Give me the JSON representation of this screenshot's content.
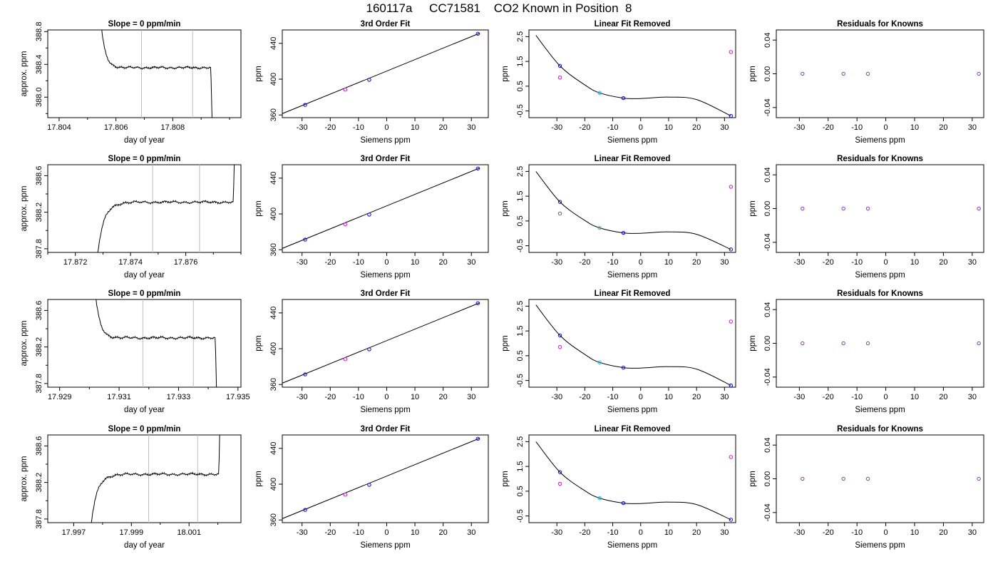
{
  "figure": {
    "title": "160117a     CC71581    CO2 Known in Position  8",
    "colors": {
      "line": "#000000",
      "guide": "#bebebe",
      "point_blue": "#0000ff",
      "point_magenta": "#ee00ee",
      "point_cyan": "#00bfff",
      "point_purple": "#8a2be2"
    }
  },
  "chart_data": [
    {
      "type": "line",
      "row": 1,
      "panel": "time",
      "title": "Slope =  0  ppm/min",
      "xlabel": "day of year",
      "ylabel": "approx. ppm",
      "xlim": [
        17.8036,
        17.8104
      ],
      "ylim": [
        387.75,
        388.82
      ],
      "xticks": [
        "17.804",
        "17.806",
        "17.808"
      ],
      "xtick_values": [
        17.804,
        17.806,
        17.808
      ],
      "yticks": [
        "388.0",
        "388.4",
        "388.8"
      ],
      "ytick_values": [
        388.0,
        388.4,
        388.8
      ],
      "guides": [
        17.8069,
        17.8087
      ],
      "shape": "down",
      "plateau": 388.36,
      "step_start": 17.8053,
      "step_end": 17.8094
    },
    {
      "type": "line",
      "row": 2,
      "panel": "time",
      "title": "Slope =  0  ppm/min",
      "xlabel": "day of year",
      "ylabel": "approx. ppm",
      "xlim": [
        17.871,
        17.878
      ],
      "ylim": [
        387.76,
        388.72
      ],
      "xticks": [
        "17.872",
        "17.874",
        "17.876"
      ],
      "xtick_values": [
        17.872,
        17.874,
        17.876
      ],
      "yticks": [
        "387.8",
        "388.2",
        "388.6"
      ],
      "ytick_values": [
        387.8,
        388.2,
        388.6
      ],
      "guides": [
        17.8748,
        17.8765
      ],
      "shape": "up",
      "plateau": 388.31,
      "step_start": 17.8727,
      "step_end": 17.8778
    },
    {
      "type": "line",
      "row": 3,
      "panel": "time",
      "title": "Slope =  0  ppm/min",
      "xlabel": "day of year",
      "ylabel": "approx. ppm",
      "xlim": [
        17.9286,
        17.9351
      ],
      "ylim": [
        387.76,
        388.72
      ],
      "xticks": [
        "17.929",
        "17.931",
        "17.933",
        "17.935"
      ],
      "xtick_values": [
        17.929,
        17.931,
        17.933,
        17.935
      ],
      "yticks": [
        "387.8",
        "388.2",
        "388.6"
      ],
      "ytick_values": [
        387.8,
        388.2,
        388.6
      ],
      "guides": [
        17.9318,
        17.9335
      ],
      "shape": "down",
      "plateau": 388.3,
      "step_start": 17.93,
      "step_end": 17.9343
    },
    {
      "type": "line",
      "row": 4,
      "panel": "time",
      "title": "Slope =  0  ppm/min",
      "xlabel": "day of year",
      "ylabel": "approx. ppm",
      "xlim": [
        17.9961,
        18.0028
      ],
      "ylim": [
        387.76,
        388.72
      ],
      "xticks": [
        "17.997",
        "17.999",
        "18.001"
      ],
      "xtick_values": [
        17.997,
        17.999,
        18.001
      ],
      "yticks": [
        "387.8",
        "388.2",
        "388.6"
      ],
      "ytick_values": [
        387.8,
        388.2,
        388.6
      ],
      "guides": [
        17.9996,
        18.0013
      ],
      "shape": "up",
      "plateau": 388.29,
      "step_start": 17.9975,
      "step_end": 18.0021
    },
    {
      "type": "scatter",
      "row": 1,
      "panel": "fit",
      "title": "3rd Order Fit",
      "xlabel": "Siemens ppm",
      "ylabel": "ppm",
      "xlim": [
        -37,
        36
      ],
      "ylim": [
        357,
        455
      ],
      "xticks": [
        "-30",
        "-20",
        "-10",
        "0",
        "10",
        "20",
        "30"
      ],
      "xtick_values": [
        -30,
        -20,
        -10,
        0,
        10,
        20,
        30
      ],
      "yticks": [
        "360",
        "400",
        "440"
      ],
      "ytick_values": [
        360,
        400,
        440
      ],
      "line": {
        "x": [
          -37,
          33
        ],
        "y": [
          361.5,
          451.4
        ]
      },
      "points": [
        {
          "x": -28.9,
          "y": 371.3,
          "color": "point_blue"
        },
        {
          "x": -14.7,
          "y": 388.3,
          "color": "point_magenta"
        },
        {
          "x": -6.2,
          "y": 399.3,
          "color": "point_blue"
        },
        {
          "x": 32.3,
          "y": 450.8,
          "color": "point_blue"
        }
      ]
    },
    {
      "type": "scatter",
      "row": 2,
      "panel": "fit",
      "title": "3rd Order Fit",
      "xlabel": "Siemens ppm",
      "ylabel": "ppm",
      "xlim": [
        -37,
        36
      ],
      "ylim": [
        357,
        455
      ],
      "xticks": [
        "-30",
        "-20",
        "-10",
        "0",
        "10",
        "20",
        "30"
      ],
      "xtick_values": [
        -30,
        -20,
        -10,
        0,
        10,
        20,
        30
      ],
      "yticks": [
        "360",
        "400",
        "440"
      ],
      "ytick_values": [
        360,
        400,
        440
      ],
      "line": {
        "x": [
          -37,
          33
        ],
        "y": [
          361.5,
          451.4
        ]
      },
      "points": [
        {
          "x": -28.9,
          "y": 371.3,
          "color": "point_blue"
        },
        {
          "x": -14.7,
          "y": 388.3,
          "color": "point_magenta"
        },
        {
          "x": -6.2,
          "y": 399.3,
          "color": "point_blue"
        },
        {
          "x": 32.3,
          "y": 450.8,
          "color": "point_blue"
        }
      ]
    },
    {
      "type": "scatter",
      "row": 3,
      "panel": "fit",
      "title": "3rd Order Fit",
      "xlabel": "Siemens ppm",
      "ylabel": "ppm",
      "xlim": [
        -37,
        36
      ],
      "ylim": [
        357,
        455
      ],
      "xticks": [
        "-30",
        "-20",
        "-10",
        "0",
        "10",
        "20",
        "30"
      ],
      "xtick_values": [
        -30,
        -20,
        -10,
        0,
        10,
        20,
        30
      ],
      "yticks": [
        "360",
        "400",
        "440"
      ],
      "ytick_values": [
        360,
        400,
        440
      ],
      "line": {
        "x": [
          -37,
          33
        ],
        "y": [
          361.5,
          451.4
        ]
      },
      "points": [
        {
          "x": -28.9,
          "y": 371.3,
          "color": "point_blue"
        },
        {
          "x": -14.7,
          "y": 388.3,
          "color": "point_magenta"
        },
        {
          "x": -6.2,
          "y": 399.3,
          "color": "point_blue"
        },
        {
          "x": 32.3,
          "y": 450.8,
          "color": "point_blue"
        }
      ]
    },
    {
      "type": "scatter",
      "row": 4,
      "panel": "fit",
      "title": "3rd Order Fit",
      "xlabel": "Siemens ppm",
      "ylabel": "ppm",
      "xlim": [
        -37,
        36
      ],
      "ylim": [
        357,
        455
      ],
      "xticks": [
        "-30",
        "-20",
        "-10",
        "0",
        "10",
        "20",
        "30"
      ],
      "xtick_values": [
        -30,
        -20,
        -10,
        0,
        10,
        20,
        30
      ],
      "yticks": [
        "360",
        "400",
        "440"
      ],
      "ytick_values": [
        360,
        400,
        440
      ],
      "line": {
        "x": [
          -37,
          33
        ],
        "y": [
          361.5,
          451.4
        ]
      },
      "points": [
        {
          "x": -28.9,
          "y": 371.3,
          "color": "point_blue"
        },
        {
          "x": -14.7,
          "y": 388.3,
          "color": "point_magenta"
        },
        {
          "x": -6.2,
          "y": 399.3,
          "color": "point_blue"
        },
        {
          "x": 32.3,
          "y": 450.8,
          "color": "point_blue"
        }
      ]
    },
    {
      "type": "scatter",
      "row": 1,
      "panel": "linres",
      "title": "Linear Fit Removed",
      "xlabel": "Siemens ppm",
      "ylabel": "ppm",
      "xlim": [
        -40,
        34
      ],
      "ylim": [
        -0.77,
        2.77
      ],
      "xticks": [
        "-30",
        "-20",
        "-10",
        "0",
        "10",
        "20",
        "30"
      ],
      "xtick_values": [
        -30,
        -20,
        -10,
        0,
        10,
        20,
        30
      ],
      "yticks": [
        "-0.5",
        "0.5",
        "1.5",
        "2.5"
      ],
      "ytick_values": [
        -0.5,
        0.5,
        1.5,
        2.5
      ],
      "curve": {
        "x": [
          -37.5,
          -28.9,
          -20,
          -14.7,
          -6.2,
          0,
          10,
          20,
          32.3
        ],
        "y": [
          2.55,
          1.32,
          0.55,
          0.23,
          0.02,
          0.0,
          0.06,
          -0.04,
          -0.7
        ]
      },
      "points": [
        {
          "x": -28.9,
          "y": 1.32,
          "color": "point_blue"
        },
        {
          "x": -28.9,
          "y": 0.85,
          "color": "point_magenta"
        },
        {
          "x": -14.7,
          "y": 0.23,
          "color": "point_cyan"
        },
        {
          "x": -6.2,
          "y": 0.02,
          "color": "point_blue"
        },
        {
          "x": 32.3,
          "y": 1.88,
          "color": "point_magenta"
        },
        {
          "x": 32.3,
          "y": -0.7,
          "color": "point_blue"
        }
      ]
    },
    {
      "type": "scatter",
      "row": 2,
      "panel": "linres",
      "title": "Linear Fit Removed",
      "xlabel": "Siemens ppm",
      "ylabel": "ppm",
      "xlim": [
        -40,
        34
      ],
      "ylim": [
        -0.77,
        2.77
      ],
      "xticks": [
        "-30",
        "-20",
        "-10",
        "0",
        "10",
        "20",
        "30"
      ],
      "xtick_values": [
        -30,
        -20,
        -10,
        0,
        10,
        20,
        30
      ],
      "yticks": [
        "-0.5",
        "0.5",
        "1.5",
        "2.5"
      ],
      "ytick_values": [
        -0.5,
        0.5,
        1.5,
        2.5
      ],
      "curve": {
        "x": [
          -37.5,
          -28.9,
          -20,
          -14.7,
          -6.2,
          0,
          10,
          20,
          32.3
        ],
        "y": [
          2.5,
          1.27,
          0.52,
          0.22,
          0.02,
          0.0,
          0.06,
          -0.04,
          -0.65
        ]
      },
      "points": [
        {
          "x": -28.9,
          "y": 1.27,
          "color": "point_blue"
        },
        {
          "x": -28.9,
          "y": 0.8,
          "color": "point_magenta"
        },
        {
          "x": -14.7,
          "y": 0.22,
          "color": "point_cyan"
        },
        {
          "x": -6.2,
          "y": 0.02,
          "color": "point_blue"
        },
        {
          "x": 32.3,
          "y": 1.88,
          "color": "point_magenta"
        },
        {
          "x": 32.3,
          "y": -0.65,
          "color": "point_blue"
        }
      ]
    },
    {
      "type": "scatter",
      "row": 3,
      "panel": "linres",
      "title": "Linear Fit Removed",
      "xlabel": "Siemens ppm",
      "ylabel": "ppm",
      "xlim": [
        -40,
        34
      ],
      "ylim": [
        -0.77,
        2.77
      ],
      "xticks": [
        "-30",
        "-20",
        "-10",
        "0",
        "10",
        "20",
        "30"
      ],
      "xtick_values": [
        -30,
        -20,
        -10,
        0,
        10,
        20,
        30
      ],
      "yticks": [
        "-0.5",
        "0.5",
        "1.5",
        "2.5"
      ],
      "ytick_values": [
        -0.5,
        0.5,
        1.5,
        2.5
      ],
      "curve": {
        "x": [
          -37.5,
          -28.9,
          -20,
          -14.7,
          -6.2,
          0,
          10,
          20,
          32.3
        ],
        "y": [
          2.55,
          1.32,
          0.55,
          0.23,
          0.02,
          0.0,
          0.06,
          -0.04,
          -0.7
        ]
      },
      "points": [
        {
          "x": -28.9,
          "y": 1.32,
          "color": "point_blue"
        },
        {
          "x": -28.9,
          "y": 0.85,
          "color": "point_magenta"
        },
        {
          "x": -14.7,
          "y": 0.23,
          "color": "point_cyan"
        },
        {
          "x": -6.2,
          "y": 0.02,
          "color": "point_blue"
        },
        {
          "x": 32.3,
          "y": 1.88,
          "color": "point_magenta"
        },
        {
          "x": 32.3,
          "y": -0.7,
          "color": "point_blue"
        }
      ]
    },
    {
      "type": "scatter",
      "row": 4,
      "panel": "linres",
      "title": "Linear Fit Removed",
      "xlabel": "Siemens ppm",
      "ylabel": "ppm",
      "xlim": [
        -40,
        34
      ],
      "ylim": [
        -0.77,
        2.77
      ],
      "xticks": [
        "-30",
        "-20",
        "-10",
        "0",
        "10",
        "20",
        "30"
      ],
      "xtick_values": [
        -30,
        -20,
        -10,
        0,
        10,
        20,
        30
      ],
      "yticks": [
        "-0.5",
        "0.5",
        "1.5",
        "2.5"
      ],
      "ytick_values": [
        -0.5,
        0.5,
        1.5,
        2.5
      ],
      "curve": {
        "x": [
          -37.5,
          -28.9,
          -20,
          -14.7,
          -6.2,
          0,
          10,
          20,
          32.3
        ],
        "y": [
          2.5,
          1.27,
          0.52,
          0.22,
          0.02,
          0.0,
          0.06,
          -0.04,
          -0.65
        ]
      },
      "points": [
        {
          "x": -28.9,
          "y": 1.27,
          "color": "point_blue"
        },
        {
          "x": -28.9,
          "y": 0.8,
          "color": "point_magenta"
        },
        {
          "x": -14.7,
          "y": 0.22,
          "color": "point_cyan"
        },
        {
          "x": -6.2,
          "y": 0.02,
          "color": "point_blue"
        },
        {
          "x": 32.3,
          "y": 1.88,
          "color": "point_magenta"
        },
        {
          "x": 32.3,
          "y": -0.65,
          "color": "point_blue"
        }
      ]
    },
    {
      "type": "scatter",
      "row": 1,
      "panel": "resid",
      "title": "Residuals for Knowns",
      "xlabel": "Siemens ppm",
      "ylabel": "ppm",
      "xlim": [
        -38,
        34
      ],
      "ylim": [
        -0.052,
        0.052
      ],
      "xticks": [
        "-30",
        "-20",
        "-10",
        "0",
        "10",
        "20",
        "30"
      ],
      "xtick_values": [
        -30,
        -20,
        -10,
        0,
        10,
        20,
        30
      ],
      "yticks": [
        "-0.04",
        "0.00",
        "0.04"
      ],
      "ytick_values": [
        -0.04,
        0.0,
        0.04
      ],
      "points": [
        {
          "x": -28.9,
          "y": 0.0,
          "color": "point_purple"
        },
        {
          "x": -14.7,
          "y": 0.0,
          "color": "point_purple"
        },
        {
          "x": -6.2,
          "y": 0.0,
          "color": "point_purple"
        },
        {
          "x": 32.3,
          "y": 0.0,
          "color": "point_purple"
        }
      ]
    },
    {
      "type": "scatter",
      "row": 2,
      "panel": "resid",
      "title": "Residuals for Knowns",
      "xlabel": "Siemens ppm",
      "ylabel": "ppm",
      "xlim": [
        -38,
        34
      ],
      "ylim": [
        -0.052,
        0.052
      ],
      "xticks": [
        "-30",
        "-20",
        "-10",
        "0",
        "10",
        "20",
        "30"
      ],
      "xtick_values": [
        -30,
        -20,
        -10,
        0,
        10,
        20,
        30
      ],
      "yticks": [
        "-0.04",
        "0.00",
        "0.04"
      ],
      "ytick_values": [
        -0.04,
        0.0,
        0.04
      ],
      "points": [
        {
          "x": -28.9,
          "y": 0.0,
          "color": "point_purple"
        },
        {
          "x": -14.7,
          "y": 0.0,
          "color": "point_purple"
        },
        {
          "x": -6.2,
          "y": 0.0,
          "color": "point_purple"
        },
        {
          "x": 32.3,
          "y": 0.0,
          "color": "point_purple"
        }
      ]
    },
    {
      "type": "scatter",
      "row": 3,
      "panel": "resid",
      "title": "Residuals for Knowns",
      "xlabel": "Siemens ppm",
      "ylabel": "ppm",
      "xlim": [
        -38,
        34
      ],
      "ylim": [
        -0.052,
        0.052
      ],
      "xticks": [
        "-30",
        "-20",
        "-10",
        "0",
        "10",
        "20",
        "30"
      ],
      "xtick_values": [
        -30,
        -20,
        -10,
        0,
        10,
        20,
        30
      ],
      "yticks": [
        "-0.04",
        "0.00",
        "0.04"
      ],
      "ytick_values": [
        -0.04,
        0.0,
        0.04
      ],
      "points": [
        {
          "x": -28.9,
          "y": 0.0,
          "color": "point_purple"
        },
        {
          "x": -14.7,
          "y": 0.0,
          "color": "point_purple"
        },
        {
          "x": -6.2,
          "y": 0.0,
          "color": "point_purple"
        },
        {
          "x": 32.3,
          "y": 0.0,
          "color": "point_purple"
        }
      ]
    },
    {
      "type": "scatter",
      "row": 4,
      "panel": "resid",
      "title": "Residuals for Knowns",
      "xlabel": "Siemens ppm",
      "ylabel": "ppm",
      "xlim": [
        -38,
        34
      ],
      "ylim": [
        -0.052,
        0.052
      ],
      "xticks": [
        "-30",
        "-20",
        "-10",
        "0",
        "10",
        "20",
        "30"
      ],
      "xtick_values": [
        -30,
        -20,
        -10,
        0,
        10,
        20,
        30
      ],
      "yticks": [
        "-0.04",
        "0.00",
        "0.04"
      ],
      "ytick_values": [
        -0.04,
        0.0,
        0.04
      ],
      "points": [
        {
          "x": -28.9,
          "y": 0.0,
          "color": "point_purple"
        },
        {
          "x": -14.7,
          "y": 0.0,
          "color": "point_purple"
        },
        {
          "x": -6.2,
          "y": 0.0,
          "color": "point_purple"
        },
        {
          "x": 32.3,
          "y": 0.0,
          "color": "point_purple"
        }
      ]
    }
  ]
}
